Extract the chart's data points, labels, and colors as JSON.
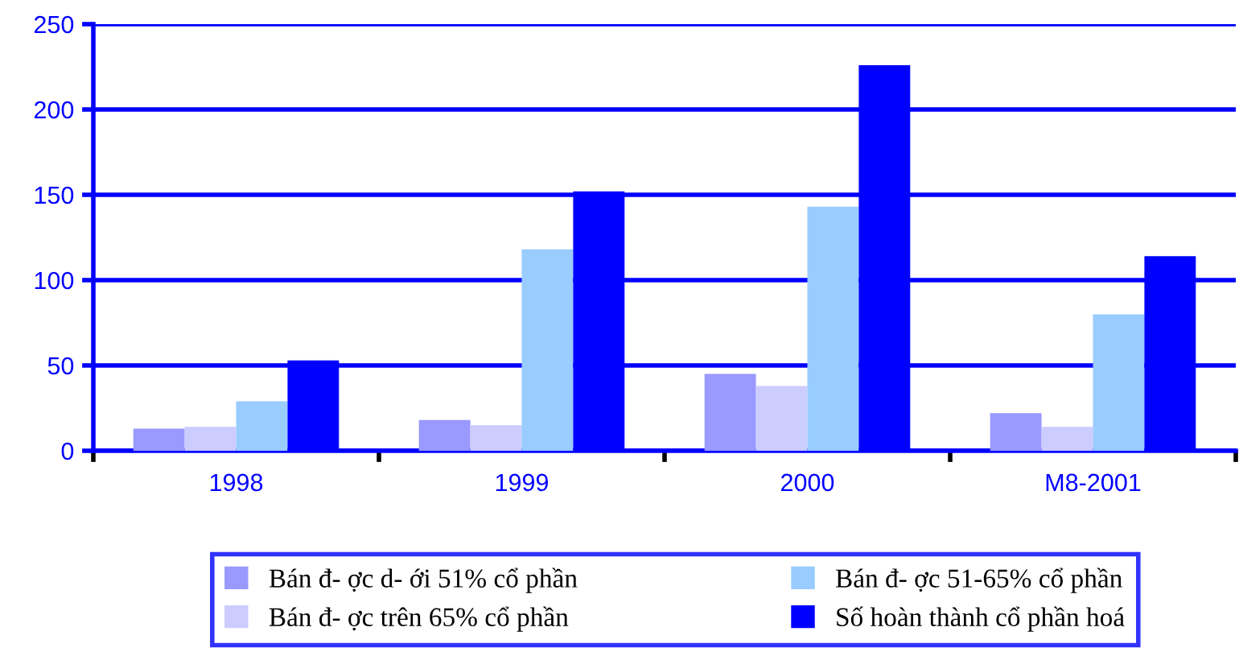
{
  "chart_data": {
    "type": "bar",
    "categories": [
      "1998",
      "1999",
      "2000",
      "M8-2001"
    ],
    "series": [
      {
        "name": "Bán đ- ợc d- ới 51% cổ phần",
        "color": "#9999ff",
        "values": [
          13,
          18,
          45,
          22
        ]
      },
      {
        "name": "Bán đ- ợc trên 65% cổ phần",
        "color": "#ccccff",
        "values": [
          14,
          15,
          38,
          14
        ]
      },
      {
        "name": "Bán đ- ợc 51-65% cổ phần",
        "color": "#99ccff",
        "values": [
          29,
          118,
          143,
          80
        ]
      },
      {
        "name": "Số hoàn thành cổ phần hoá",
        "color": "#0000ff",
        "values": [
          53,
          152,
          226,
          114
        ]
      }
    ],
    "ylim": [
      0,
      250
    ],
    "yticks": [
      0,
      50,
      100,
      150,
      200,
      250
    ],
    "grid": "y",
    "legend": "bottom"
  }
}
